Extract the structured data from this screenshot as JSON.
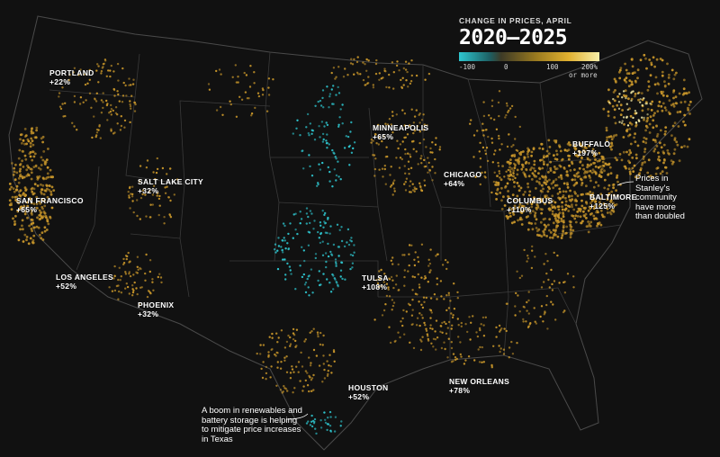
{
  "legend": {
    "title": "CHANGE IN PRICES, APRIL",
    "years": "2020–2025",
    "ticks": [
      "-100",
      "0",
      "100",
      "200%"
    ],
    "tick_sub": "or more",
    "colors": {
      "low": "#2ec6cf",
      "zero": "#3d3a26",
      "mid": "#c8962a",
      "high": "#f7eea8"
    }
  },
  "cities": [
    {
      "id": "portland",
      "name": "PORTLAND",
      "value": "+22%"
    },
    {
      "id": "san-francisco",
      "name": "SAN FRANCISCO",
      "value": "+65%"
    },
    {
      "id": "los-angeles",
      "name": "LOS ANGELES",
      "value": "+52%"
    },
    {
      "id": "salt-lake-city",
      "name": "SALT LAKE CITY",
      "value": "+32%"
    },
    {
      "id": "phoenix",
      "name": "PHOENIX",
      "value": "+32%"
    },
    {
      "id": "minneapolis",
      "name": "MINNEAPOLIS",
      "value": "+65%"
    },
    {
      "id": "tulsa",
      "name": "TULSA",
      "value": "+108%"
    },
    {
      "id": "houston",
      "name": "HOUSTON",
      "value": "+52%"
    },
    {
      "id": "new-orleans",
      "name": "NEW ORLEANS",
      "value": "+78%"
    },
    {
      "id": "chicago",
      "name": "CHICAGO",
      "value": "+64%"
    },
    {
      "id": "columbus",
      "name": "COLUMBUS",
      "value": "+110%"
    },
    {
      "id": "buffalo",
      "name": "BUFFALO",
      "value": "+197%"
    },
    {
      "id": "baltimore",
      "name": "BALTIMORE",
      "value": "+125%"
    }
  ],
  "notes": {
    "texas": "A boom in renewables and battery storage is helping to mitigate price increases in Texas",
    "stanley": "Prices in Stanley's community have more than doubled"
  }
}
